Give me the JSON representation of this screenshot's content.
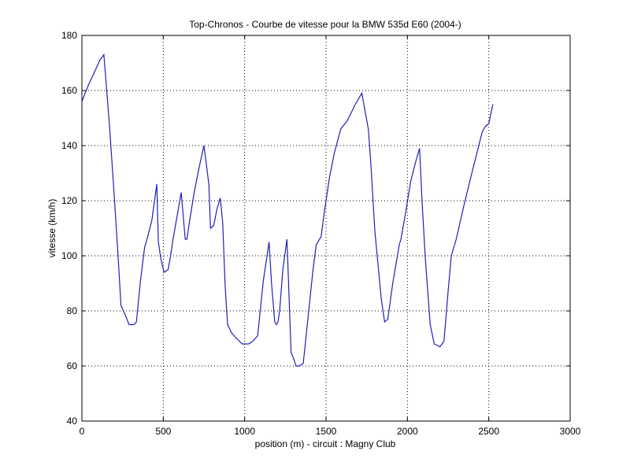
{
  "chart_data": {
    "type": "line",
    "title": "Top-Chronos - Courbe de vitesse pour la BMW 535d E60 (2004-)",
    "xlabel": "position (m) - circuit : Magny Club",
    "ylabel": "vitesse (km/h)",
    "xlim": [
      0,
      3000
    ],
    "ylim": [
      40,
      180
    ],
    "xticks": [
      0,
      500,
      1000,
      1500,
      2000,
      2500,
      3000
    ],
    "yticks": [
      40,
      60,
      80,
      100,
      120,
      140,
      160,
      180
    ],
    "xtick_labels": [
      "0",
      "500",
      "1000",
      "1500",
      "2000",
      "2500",
      "3000"
    ],
    "ytick_labels": [
      "40",
      "60",
      "80",
      "100",
      "120",
      "140",
      "160",
      "180"
    ],
    "grid": true,
    "series_color": "#1f1fb8",
    "series": [
      {
        "x": [
          0,
          40,
          80,
          110,
          135,
          150,
          170,
          195,
          220,
          240,
          270,
          290,
          320,
          335,
          360,
          385,
          400,
          430,
          460,
          470,
          485,
          505,
          530,
          545,
          560,
          590,
          610,
          635,
          645,
          660,
          690,
          720,
          750,
          780,
          790,
          810,
          830,
          850,
          865,
          880,
          895,
          920,
          950,
          985,
          1000,
          1025,
          1050,
          1080,
          1115,
          1150,
          1165,
          1185,
          1195,
          1205,
          1215,
          1235,
          1260,
          1285,
          1305,
          1315,
          1335,
          1360,
          1390,
          1420,
          1440,
          1470,
          1490,
          1510,
          1520,
          1550,
          1590,
          1630,
          1680,
          1720,
          1760,
          1775,
          1800,
          1840,
          1860,
          1880,
          1910,
          1950,
          1960,
          1990,
          2020,
          2050,
          2075,
          2090,
          2110,
          2140,
          2165,
          2200,
          2225,
          2250,
          2270,
          2300,
          2350,
          2400,
          2460,
          2480,
          2500,
          2525
        ],
        "y": [
          156,
          162,
          167,
          171,
          173,
          162,
          147,
          125,
          102,
          82,
          78,
          75,
          75,
          76,
          91,
          103,
          106,
          113,
          126,
          105,
          99,
          94,
          95,
          100,
          106,
          116,
          123,
          106,
          106,
          112,
          123,
          132,
          140,
          126,
          110,
          111,
          117,
          121,
          112,
          89,
          75,
          72,
          70,
          68,
          68,
          68,
          69,
          71,
          91,
          105,
          90,
          76,
          75,
          76,
          80,
          95,
          106,
          65,
          62,
          60,
          60,
          61,
          78,
          95,
          104,
          107,
          116,
          124,
          128,
          137,
          146,
          149,
          155,
          159,
          146,
          134,
          109,
          84,
          76,
          77,
          90,
          104,
          106,
          116,
          127,
          134,
          139,
          120,
          99,
          75,
          68,
          67,
          69,
          87,
          100,
          106,
          119,
          131,
          145,
          147,
          148,
          155
        ]
      }
    ]
  }
}
